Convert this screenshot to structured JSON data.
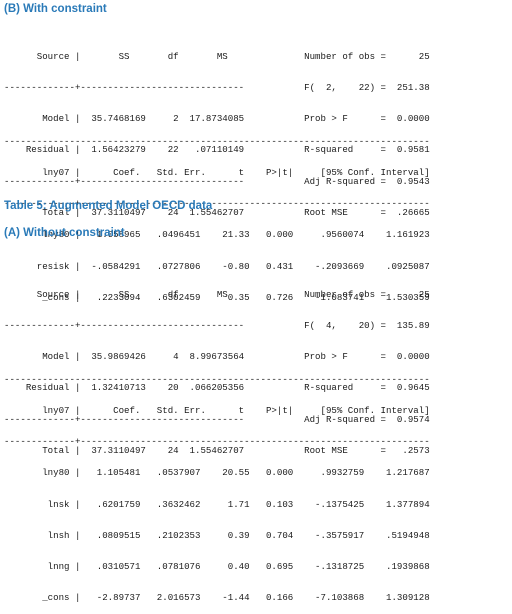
{
  "headings": {
    "b_with_constraint": "(B) With constraint",
    "table5_title": "Table 5: Augmented Model OECD data",
    "a_without_constraint": "(A) Without constraint"
  },
  "anova_b": [
    "      Source |       SS       df       MS              Number of obs =      25",
    "-------------+------------------------------           F(  2,    22) =  251.38",
    "       Model |  35.7468169     2  17.8734085           Prob > F      =  0.0000",
    "    Residual |  1.56423279    22   .07110149           R-squared     =  0.9581",
    "-------------+------------------------------           Adj R-squared =  0.9543",
    "       Total |  37.3110497    24  1.55462707           Root MSE      =  .26665"
  ],
  "coef_b": [
    "------------------------------------------------------------------------------",
    "       lny07 |      Coef.   Std. Err.      t    P>|t|     [95% Conf. Interval]",
    "-------------+----------------------------------------------------------------",
    "       lny80 |   1.058965   .0496451    21.33   0.000     .9560074    1.161923",
    "      resisk |  -.0584291   .0727806    -0.80   0.431    -.2093669    .0925087",
    "       _cons |   .2233094   .6302459     0.35   0.726    -1.083741    1.530359"
  ],
  "anova_a": [
    "      Source |       SS       df       MS              Number of obs =      25",
    "-------------+------------------------------           F(  4,    20) =  135.89",
    "       Model |  35.9869426     4  8.99673564           Prob > F      =  0.0000",
    "    Residual |  1.32410713    20  .066205356           R-squared     =  0.9645",
    "-------------+------------------------------           Adj R-squared =  0.9574",
    "       Total |  37.3110497    24  1.55462707           Root MSE      =   .2573"
  ],
  "coef_a": [
    "------------------------------------------------------------------------------",
    "       lny07 |      Coef.   Std. Err.      t    P>|t|     [95% Conf. Interval]",
    "-------------+----------------------------------------------------------------",
    "       lny80 |   1.105481   .0537907    20.55   0.000     .9932759    1.217687",
    "        lnsk |   .6201759   .3632462     1.71   0.103    -.1375425    1.377894",
    "        lnsh |   .0809515   .2102353     0.39   0.704    -.3575917    .5194948",
    "        lnng |   .0310571   .0781076     0.40   0.695    -.1318725    .1939868",
    "       _cons |   -2.89737   2.016573    -1.44   0.166    -7.103868    1.309128"
  ]
}
